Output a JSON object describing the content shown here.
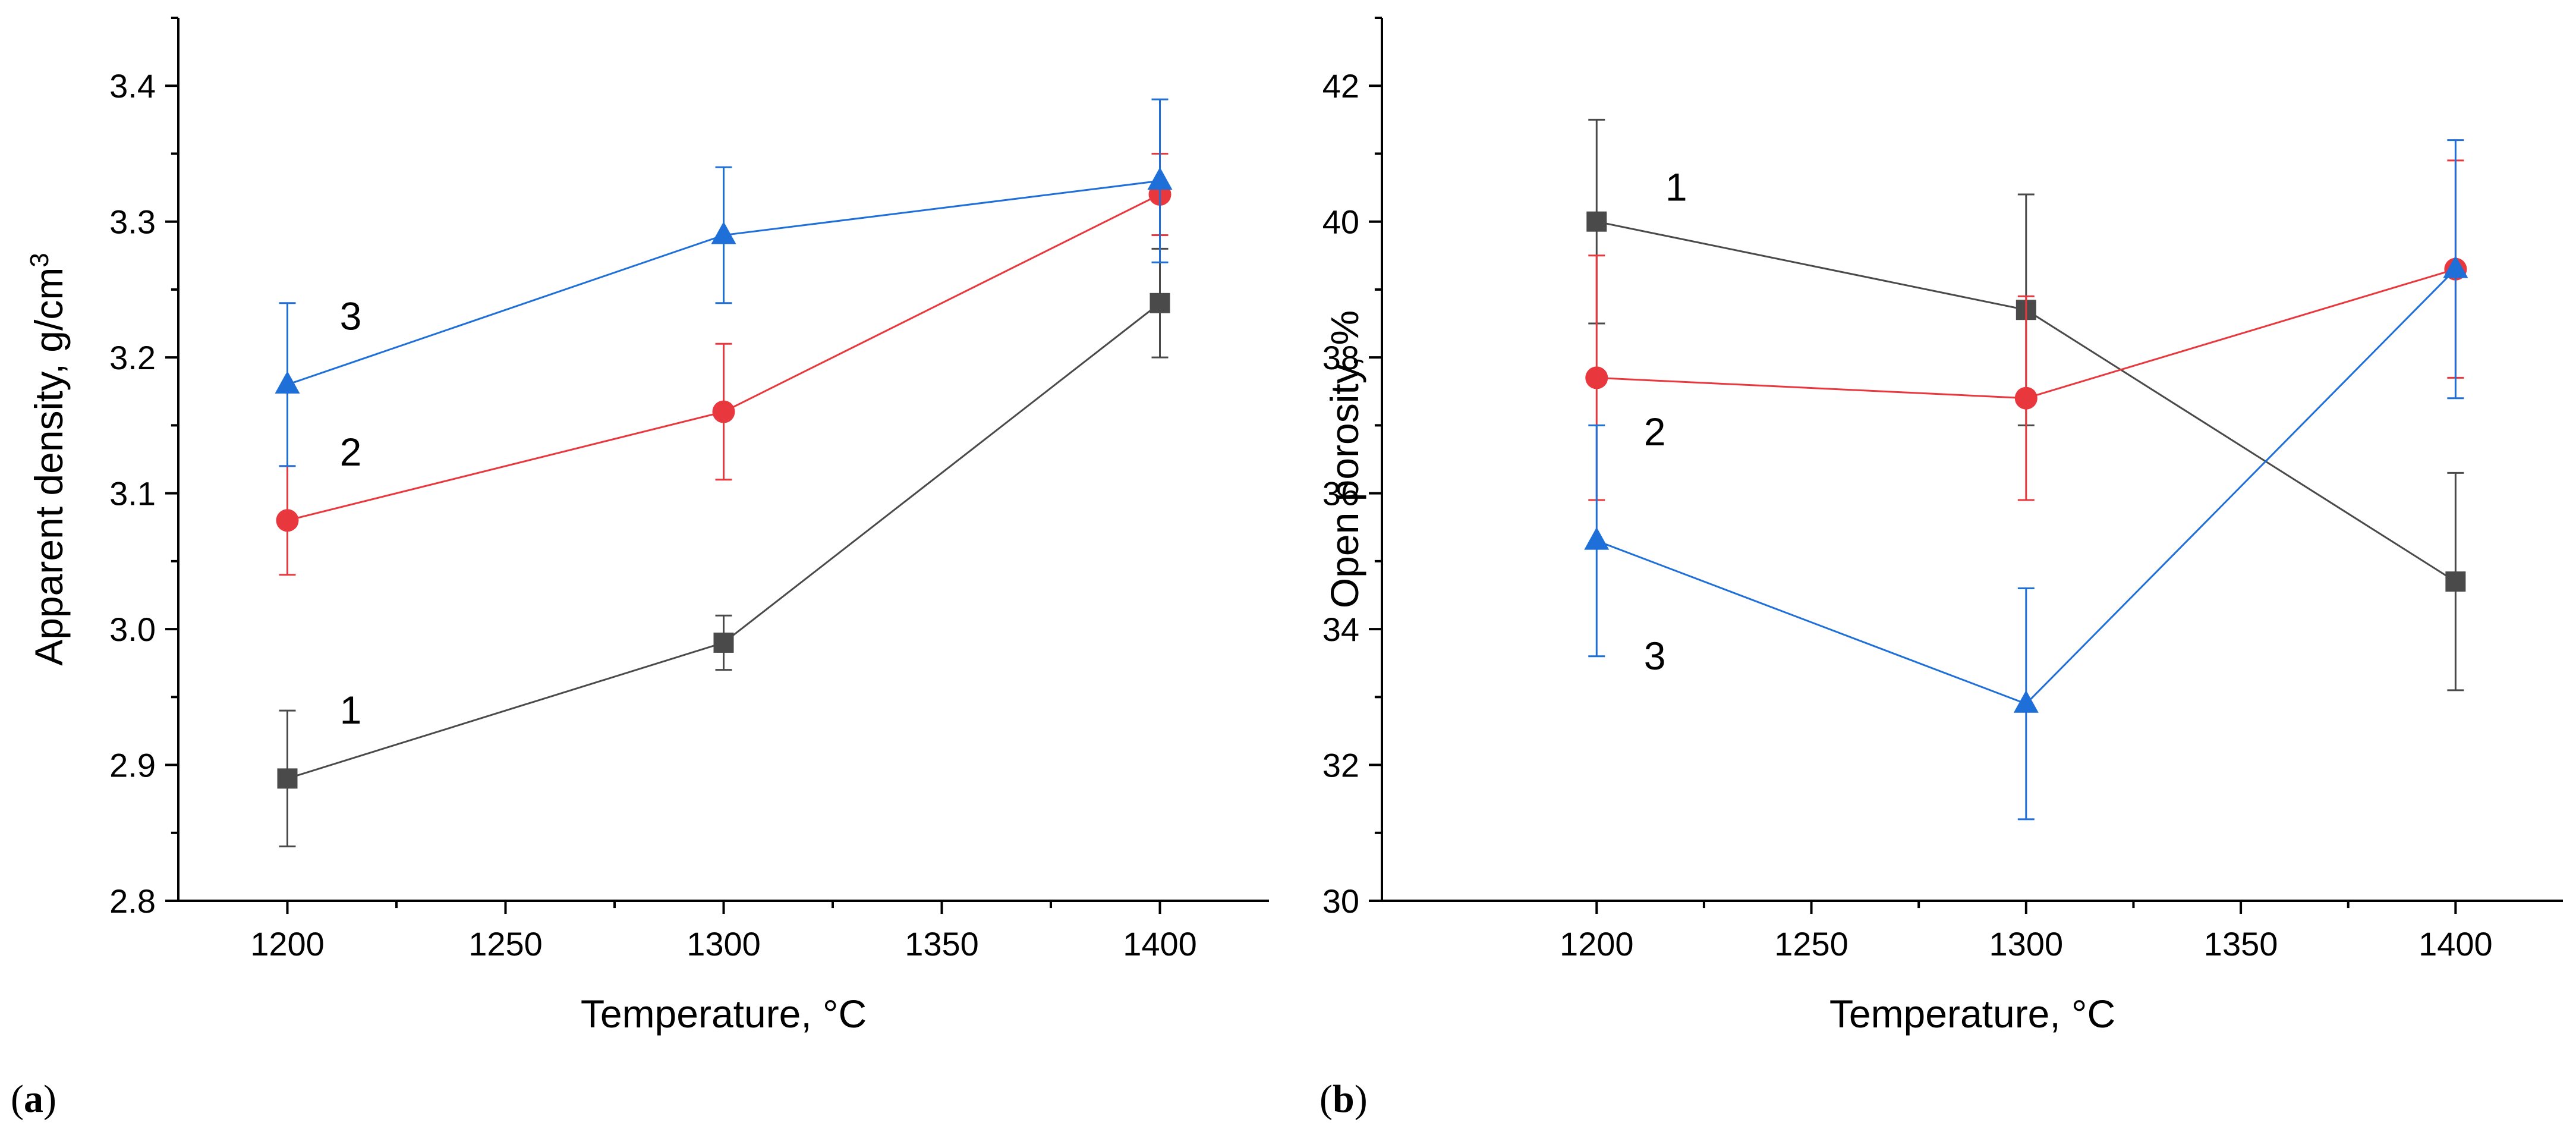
{
  "chart_data": [
    {
      "type": "line",
      "panel_label": "a",
      "title": "",
      "xlabel": "Temperature, °C",
      "ylabel": "Apparent density, g/cm",
      "ylabel_superscript": "3",
      "xlim": [
        1175,
        1425
      ],
      "ylim": [
        2.8,
        3.45
      ],
      "xticks": [
        "1200",
        "1250",
        "1300",
        "1350",
        "1400"
      ],
      "yticks": [
        "2.8",
        "2.9",
        "3.0",
        "3.1",
        "3.2",
        "3.3",
        "3.4"
      ],
      "x": [
        1200,
        1300,
        1400
      ],
      "series": [
        {
          "name": "1",
          "color": "#4a4a4a",
          "marker": "square",
          "values": [
            2.89,
            2.99,
            3.24
          ],
          "errors": [
            0.05,
            0.02,
            0.04
          ]
        },
        {
          "name": "2",
          "color": "#e8383d",
          "marker": "circle",
          "values": [
            3.08,
            3.16,
            3.32
          ],
          "errors": [
            0.04,
            0.05,
            0.03
          ]
        },
        {
          "name": "3",
          "color": "#1f6fd9",
          "marker": "triangle",
          "values": [
            3.18,
            3.29,
            3.33
          ],
          "errors": [
            0.06,
            0.05,
            0.06
          ]
        }
      ],
      "annotations": [
        {
          "text": "3",
          "x": 1212,
          "y": 3.23
        },
        {
          "text": "2",
          "x": 1212,
          "y": 3.13
        },
        {
          "text": "1",
          "x": 1212,
          "y": 2.94
        }
      ]
    },
    {
      "type": "line",
      "panel_label": "b",
      "title": "",
      "xlabel": "Temperature, °C",
      "ylabel": "Open porosity, %",
      "xlim": [
        1150,
        1425
      ],
      "ylim": [
        30,
        43
      ],
      "xticks": [
        "1200",
        "1250",
        "1300",
        "1350",
        "1400"
      ],
      "yticks": [
        "30",
        "32",
        "34",
        "36",
        "38",
        "40",
        "42"
      ],
      "x": [
        1200,
        1300,
        1400
      ],
      "series": [
        {
          "name": "1",
          "color": "#4a4a4a",
          "marker": "square",
          "values": [
            40.0,
            38.7,
            34.7
          ],
          "errors": [
            1.5,
            1.7,
            1.6
          ]
        },
        {
          "name": "2",
          "color": "#e8383d",
          "marker": "circle",
          "values": [
            37.7,
            37.4,
            39.3
          ],
          "errors": [
            1.8,
            1.5,
            1.6
          ]
        },
        {
          "name": "3",
          "color": "#1f6fd9",
          "marker": "triangle",
          "values": [
            35.3,
            32.9,
            39.3
          ],
          "errors": [
            1.7,
            1.7,
            1.9
          ]
        }
      ],
      "annotations": [
        {
          "text": "1",
          "x": 1216,
          "y": 40.5
        },
        {
          "text": "2",
          "x": 1211,
          "y": 36.9
        },
        {
          "text": "3",
          "x": 1211,
          "y": 33.6
        }
      ]
    }
  ]
}
